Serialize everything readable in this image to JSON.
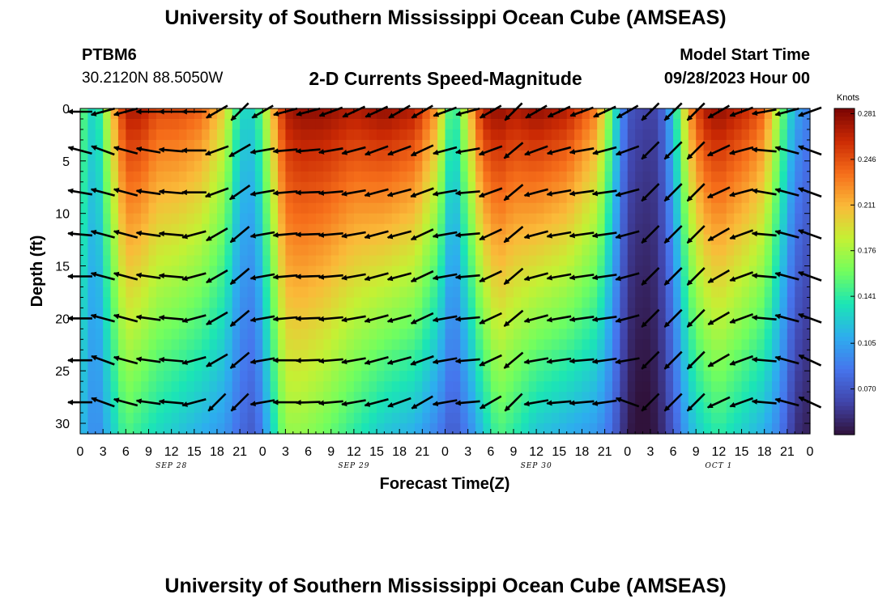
{
  "header": {
    "title": "University of Southern Mississippi Ocean Cube (AMSEAS)",
    "footer_title": "University of Southern Mississippi Ocean Cube (AMSEAS)",
    "station_id": "PTBM6",
    "coordinates": "30.2120N  88.5050W",
    "plot_subtitle": "2-D Currents Speed-Magnitude",
    "model_start_label": "Model Start Time",
    "model_start_value": "09/28/2023 Hour 00"
  },
  "chart_data": {
    "type": "heatmap",
    "title": "2-D Currents Speed-Magnitude",
    "xlabel": "Forecast Time(Z)",
    "ylabel": "Depth (ft)",
    "x_hours": [
      0,
      3,
      6,
      9,
      12,
      15,
      18,
      21,
      24,
      27,
      30,
      33,
      36,
      39,
      42,
      45,
      48,
      51,
      54,
      57,
      60,
      63,
      66,
      69,
      72,
      75,
      78,
      81,
      84,
      87,
      90,
      93,
      96
    ],
    "x_tick_labels": [
      "0",
      "3",
      "6",
      "9",
      "12",
      "15",
      "18",
      "21",
      "0",
      "3",
      "6",
      "9",
      "12",
      "15",
      "18",
      "21",
      "0",
      "3",
      "6",
      "9",
      "12",
      "15",
      "18",
      "21",
      "0",
      "3",
      "6",
      "9",
      "12",
      "15",
      "18",
      "21",
      "0"
    ],
    "x_range": [
      0,
      96
    ],
    "date_labels": [
      {
        "label": "SEP 28",
        "hour": 12
      },
      {
        "label": "SEP 29",
        "hour": 36
      },
      {
        "label": "SEP 30",
        "hour": 60
      },
      {
        "label": "OCT 1",
        "hour": 84
      }
    ],
    "y_range": [
      0,
      31
    ],
    "y_ticks": [
      0,
      5,
      10,
      15,
      20,
      25,
      30
    ],
    "colorbar": {
      "label": "Knots",
      "ticks": [
        0.281,
        0.246,
        0.211,
        0.176,
        0.141,
        0.105,
        0.07
      ],
      "tick_labels": [
        "0.281",
        "0.246",
        "0.211",
        "0.176",
        "0.141",
        "0.105",
        "0.070"
      ],
      "range": [
        0.035,
        0.285
      ]
    },
    "speed_profile": {
      "hours": [
        0,
        2,
        4,
        6,
        8,
        10,
        13,
        16,
        19,
        21,
        23,
        25,
        27,
        29,
        32,
        36,
        40,
        44,
        47,
        49,
        51,
        53,
        55,
        57,
        60,
        64,
        68,
        70,
        72,
        74,
        76,
        78,
        80,
        82,
        84,
        86,
        88,
        90,
        92,
        94,
        96
      ],
      "surface": [
        0.16,
        0.12,
        0.2,
        0.27,
        0.27,
        0.25,
        0.25,
        0.24,
        0.2,
        0.13,
        0.13,
        0.2,
        0.27,
        0.28,
        0.28,
        0.27,
        0.28,
        0.27,
        0.22,
        0.13,
        0.2,
        0.27,
        0.28,
        0.27,
        0.28,
        0.27,
        0.23,
        0.15,
        0.07,
        0.06,
        0.06,
        0.12,
        0.22,
        0.27,
        0.28,
        0.27,
        0.26,
        0.24,
        0.17,
        0.11,
        0.09
      ],
      "bottom": [
        0.12,
        0.09,
        0.12,
        0.15,
        0.14,
        0.13,
        0.12,
        0.11,
        0.1,
        0.08,
        0.07,
        0.12,
        0.17,
        0.17,
        0.16,
        0.14,
        0.12,
        0.11,
        0.09,
        0.07,
        0.09,
        0.12,
        0.15,
        0.14,
        0.12,
        0.11,
        0.1,
        0.08,
        0.04,
        0.03,
        0.04,
        0.07,
        0.11,
        0.13,
        0.14,
        0.13,
        0.12,
        0.11,
        0.09,
        0.05,
        0.04
      ]
    },
    "vector_depths": [
      0,
      4,
      8,
      12,
      16,
      20,
      24,
      28
    ],
    "vector_hours": [
      0,
      3,
      6,
      9,
      12,
      15,
      18,
      21,
      24,
      27,
      30,
      33,
      36,
      39,
      42,
      45,
      48,
      51,
      54,
      57,
      60,
      63,
      66,
      69,
      72,
      75,
      78,
      81,
      84,
      87,
      90,
      93,
      96
    ],
    "vector_direction_deg": [
      [
        180,
        195,
        195,
        180,
        180,
        180,
        210,
        225,
        210,
        195,
        195,
        200,
        205,
        205,
        210,
        210,
        200,
        195,
        210,
        225,
        210,
        205,
        200,
        205,
        210,
        225,
        225,
        225,
        210,
        200,
        190,
        195,
        200
      ],
      [
        165,
        160,
        165,
        170,
        175,
        180,
        200,
        210,
        190,
        185,
        185,
        190,
        195,
        200,
        200,
        205,
        195,
        190,
        200,
        220,
        200,
        195,
        190,
        195,
        200,
        225,
        225,
        225,
        205,
        195,
        175,
        165,
        160
      ],
      [
        170,
        165,
        165,
        172,
        175,
        180,
        200,
        215,
        190,
        185,
        182,
        185,
        190,
        195,
        195,
        200,
        190,
        185,
        200,
        220,
        195,
        190,
        188,
        188,
        195,
        225,
        225,
        225,
        205,
        195,
        170,
        165,
        160
      ],
      [
        175,
        165,
        165,
        172,
        175,
        195,
        210,
        220,
        190,
        185,
        182,
        185,
        190,
        195,
        195,
        205,
        190,
        185,
        205,
        220,
        195,
        190,
        188,
        188,
        195,
        225,
        225,
        225,
        210,
        200,
        175,
        165,
        160
      ],
      [
        180,
        165,
        165,
        172,
        175,
        195,
        210,
        220,
        190,
        185,
        182,
        185,
        190,
        195,
        195,
        205,
        190,
        185,
        205,
        220,
        195,
        190,
        188,
        188,
        195,
        225,
        225,
        225,
        210,
        200,
        175,
        165,
        160
      ],
      [
        180,
        165,
        165,
        172,
        175,
        195,
        210,
        220,
        190,
        185,
        182,
        185,
        190,
        195,
        195,
        205,
        190,
        185,
        205,
        220,
        195,
        190,
        188,
        188,
        195,
        225,
        225,
        225,
        210,
        200,
        175,
        165,
        160
      ],
      [
        180,
        160,
        165,
        172,
        175,
        195,
        210,
        220,
        190,
        180,
        182,
        185,
        190,
        195,
        195,
        200,
        190,
        185,
        205,
        220,
        190,
        188,
        185,
        188,
        190,
        225,
        225,
        225,
        210,
        200,
        175,
        165,
        155
      ],
      [
        180,
        160,
        165,
        172,
        175,
        195,
        225,
        225,
        190,
        180,
        182,
        185,
        190,
        195,
        200,
        210,
        190,
        185,
        210,
        225,
        190,
        185,
        185,
        188,
        160,
        225,
        225,
        225,
        205,
        200,
        175,
        165,
        155
      ]
    ]
  }
}
